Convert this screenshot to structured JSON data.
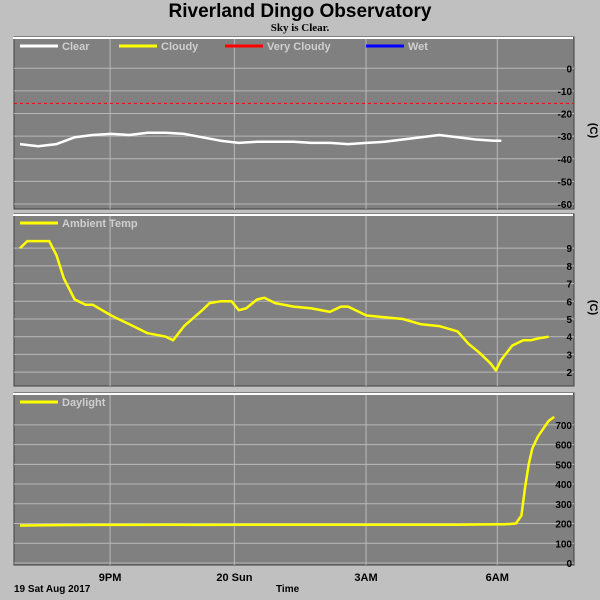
{
  "header": {
    "title": "Riverland Dingo Observatory",
    "subtitle": "Sky is Clear."
  },
  "footer": {
    "date_label": "19 Sat Aug 2017",
    "x_title": "Time"
  },
  "chart_data": [
    {
      "type": "line",
      "name": "cloud",
      "unit": "(C)",
      "ylim": [
        -60,
        5
      ],
      "yticks": [
        0,
        -10,
        -20,
        -30,
        -40,
        -50,
        -60
      ],
      "grid": true,
      "legend_placement": "top-left",
      "legend": [
        {
          "label": "Clear",
          "color": "#ffffff"
        },
        {
          "label": "Cloudy",
          "color": "#ffff00"
        },
        {
          "label": "Very Cloudy",
          "color": "#ff0000"
        },
        {
          "label": "Wet",
          "color": "#0000ff"
        }
      ],
      "thresholds": [
        {
          "label": "Very Cloudy",
          "value": -15.5,
          "color": "#ff0000",
          "style": "dashed"
        }
      ],
      "series": [
        {
          "name": "Clear",
          "color": "#ffffff",
          "points": [
            [
              0.0,
              -33.5
            ],
            [
              0.5,
              -34.5
            ],
            [
              1.0,
              -33.5
            ],
            [
              1.5,
              -30.5
            ],
            [
              2.0,
              -29.5
            ],
            [
              2.5,
              -29
            ],
            [
              3.0,
              -29.5
            ],
            [
              3.5,
              -28.5
            ],
            [
              4.0,
              -28.5
            ],
            [
              4.5,
              -29
            ],
            [
              5.0,
              -30.5
            ],
            [
              5.5,
              -32
            ],
            [
              6.0,
              -33
            ],
            [
              6.5,
              -32.5
            ],
            [
              7.0,
              -32.5
            ],
            [
              7.5,
              -32.5
            ],
            [
              8.0,
              -33
            ],
            [
              8.5,
              -33
            ],
            [
              9.0,
              -33.5
            ],
            [
              9.5,
              -33
            ],
            [
              10.0,
              -32.5
            ],
            [
              10.5,
              -31.5
            ],
            [
              11.0,
              -30.5
            ],
            [
              11.5,
              -29.5
            ],
            [
              12.0,
              -30.5
            ],
            [
              12.5,
              -31.5
            ],
            [
              13.0,
              -32
            ],
            [
              13.2,
              -32
            ]
          ]
        }
      ]
    },
    {
      "type": "line",
      "name": "ambient",
      "unit": "(C)",
      "ylim": [
        1.5,
        9.8
      ],
      "yticks": [
        9,
        8,
        7,
        6,
        5,
        4,
        3,
        2
      ],
      "grid": true,
      "legend_placement": "top-left",
      "legend": [
        {
          "label": "Ambient Temp",
          "color": "#ffff00"
        }
      ],
      "series": [
        {
          "name": "Ambient Temp",
          "color": "#ffff00",
          "points": [
            [
              0.0,
              9.0
            ],
            [
              0.2,
              9.4
            ],
            [
              0.5,
              9.4
            ],
            [
              0.8,
              9.4
            ],
            [
              1.0,
              8.6
            ],
            [
              1.2,
              7.3
            ],
            [
              1.5,
              6.1
            ],
            [
              1.8,
              5.8
            ],
            [
              2.0,
              5.8
            ],
            [
              2.5,
              5.2
            ],
            [
              3.0,
              4.7
            ],
            [
              3.5,
              4.2
            ],
            [
              4.0,
              4.0
            ],
            [
              4.2,
              3.8
            ],
            [
              4.5,
              4.6
            ],
            [
              5.0,
              5.5
            ],
            [
              5.2,
              5.9
            ],
            [
              5.5,
              6.0
            ],
            [
              5.8,
              6.0
            ],
            [
              6.0,
              5.5
            ],
            [
              6.2,
              5.6
            ],
            [
              6.5,
              6.1
            ],
            [
              6.7,
              6.2
            ],
            [
              7.0,
              5.9
            ],
            [
              7.5,
              5.7
            ],
            [
              8.0,
              5.6
            ],
            [
              8.5,
              5.4
            ],
            [
              8.8,
              5.7
            ],
            [
              9.0,
              5.7
            ],
            [
              9.5,
              5.2
            ],
            [
              10.0,
              5.1
            ],
            [
              10.5,
              5.0
            ],
            [
              11.0,
              4.7
            ],
            [
              11.5,
              4.6
            ],
            [
              12.0,
              4.3
            ],
            [
              12.3,
              3.6
            ],
            [
              12.6,
              3.1
            ],
            [
              12.9,
              2.5
            ],
            [
              13.05,
              2.1
            ],
            [
              13.2,
              2.7
            ],
            [
              13.5,
              3.5
            ],
            [
              13.8,
              3.8
            ],
            [
              14.0,
              3.8
            ],
            [
              14.2,
              3.9
            ],
            [
              14.5,
              4.0
            ]
          ]
        }
      ]
    },
    {
      "type": "line",
      "name": "daylight",
      "unit": "",
      "ylim": [
        0,
        760
      ],
      "yticks": [
        700,
        600,
        500,
        400,
        300,
        200,
        100,
        0
      ],
      "grid": true,
      "legend_placement": "top-left",
      "legend": [
        {
          "label": "Daylight",
          "color": "#ffff00"
        }
      ],
      "series": [
        {
          "name": "Daylight",
          "color": "#ffff00",
          "points": [
            [
              0.0,
              190
            ],
            [
              1.0,
              192
            ],
            [
              2.0,
              193
            ],
            [
              3.0,
              193
            ],
            [
              4.0,
              194
            ],
            [
              5.0,
              193
            ],
            [
              6.0,
              194
            ],
            [
              7.0,
              194
            ],
            [
              8.0,
              194
            ],
            [
              9.0,
              194
            ],
            [
              10.0,
              194
            ],
            [
              11.0,
              194
            ],
            [
              11.5,
              194
            ],
            [
              12.0,
              194
            ],
            [
              12.6,
              195
            ],
            [
              13.3,
              196
            ],
            [
              13.6,
              200
            ],
            [
              13.75,
              240
            ],
            [
              13.85,
              380
            ],
            [
              13.95,
              500
            ],
            [
              14.05,
              580
            ],
            [
              14.2,
              640
            ],
            [
              14.35,
              680
            ],
            [
              14.5,
              720
            ],
            [
              14.65,
              740
            ]
          ]
        }
      ]
    }
  ],
  "x_axis": {
    "range": [
      0,
      14.7
    ],
    "ticks": [
      {
        "label": "9PM",
        "pos": 2.47
      },
      {
        "label": "20 Sun",
        "pos": 5.88
      },
      {
        "label": "3AM",
        "pos": 9.49
      },
      {
        "label": "6AM",
        "pos": 13.09
      }
    ]
  }
}
